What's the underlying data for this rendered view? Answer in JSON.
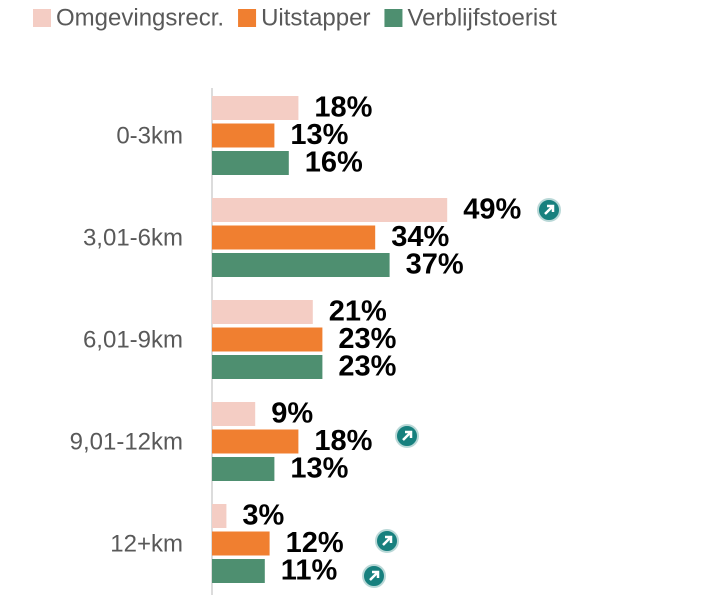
{
  "chart_data": {
    "type": "bar",
    "orientation": "horizontal",
    "categories": [
      "0-3km",
      "3,01-6km",
      "6,01-9km",
      "9,01-12km",
      "12+km"
    ],
    "series": [
      {
        "name": "Omgevingsrecr.",
        "color": "#f4cdc4",
        "values": [
          18,
          49,
          21,
          9,
          3
        ],
        "value_labels": [
          "18%",
          "49%",
          "21%",
          "9%",
          "3%"
        ]
      },
      {
        "name": "Uitstapper",
        "color": "#f07f30",
        "values": [
          13,
          34,
          23,
          18,
          12
        ],
        "value_labels": [
          "13%",
          "34%",
          "23%",
          "18%",
          "12%"
        ]
      },
      {
        "name": "Verblijfstoerist",
        "color": "#4e8f70",
        "values": [
          16,
          37,
          23,
          13,
          11
        ],
        "value_labels": [
          "16%",
          "37%",
          "23%",
          "13%",
          "11%"
        ]
      }
    ],
    "xlim": [
      0,
      50
    ],
    "legend": "top"
  }
}
